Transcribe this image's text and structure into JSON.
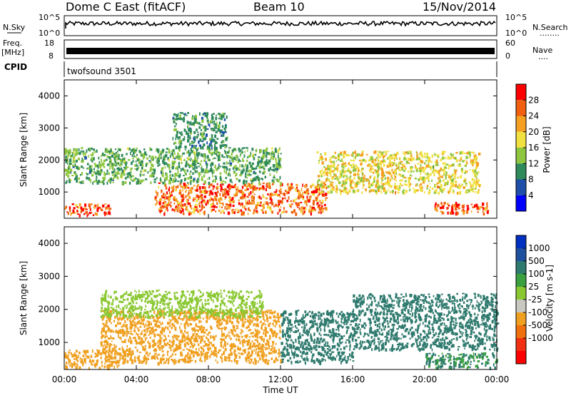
{
  "header": {
    "station": "Dome C East (fitACF)",
    "beam": "Beam 10",
    "date": "15/Nov/2014"
  },
  "noise_panel": {
    "left_label": "N.Sky",
    "left_ticks": [
      "10^5",
      "10^0"
    ],
    "right_ticks": [
      "10^5",
      "10^0"
    ],
    "right_label": "N.Search",
    "right_marker": "........"
  },
  "freq_panel": {
    "left_label_line1": "Freq.",
    "left_label_line2": "[MHz]",
    "left_ticks": [
      "18",
      "8"
    ],
    "right_ticks": [
      "60",
      "0"
    ],
    "right_label": "Nave",
    "right_marker": "...."
  },
  "cpid_panel": {
    "label": "CPID",
    "program": "twofsound 3501"
  },
  "colors": {
    "power_scale": [
      "#0000ff",
      "#1e4fa8",
      "#2e8a5a",
      "#8ec63f",
      "#f0e040",
      "#f5a020",
      "#f06010",
      "#ff0000"
    ],
    "velocity_scale": [
      "#ff0000",
      "#f03010",
      "#f07010",
      "#f0a020",
      "#c8c8c0",
      "#8ac832",
      "#3aa040",
      "#2e7a6e",
      "#1e50a0",
      "#0030c0"
    ]
  },
  "chart_data": [
    {
      "type": "heatmap",
      "quantity": "Power",
      "ylabel": "Slant Range [km]",
      "ylim": [
        180,
        4500
      ],
      "yticks": [
        "1000",
        "2000",
        "3000",
        "4000"
      ],
      "xlim": [
        0,
        24
      ],
      "colorbar": {
        "label": "Power [dB]",
        "ticks": [
          "4",
          "8",
          "12",
          "16",
          "20",
          "24",
          "28"
        ],
        "range": [
          0,
          32
        ]
      },
      "features": [
        {
          "t_start": 0.0,
          "t_end": 2.5,
          "range_low": 300,
          "range_high": 650,
          "value": 27
        },
        {
          "t_start": 5.0,
          "t_end": 14.5,
          "range_low": 350,
          "range_high": 1300,
          "value": 25
        },
        {
          "t_start": 0.0,
          "t_end": 12.0,
          "range_low": 1300,
          "range_high": 2400,
          "value": 12
        },
        {
          "t_start": 6.0,
          "t_end": 9.0,
          "range_low": 2400,
          "range_high": 3500,
          "value": 10
        },
        {
          "t_start": 14.0,
          "t_end": 23.0,
          "range_low": 1000,
          "range_high": 2300,
          "value": 18
        },
        {
          "t_start": 20.5,
          "t_end": 23.5,
          "range_low": 350,
          "range_high": 700,
          "value": 28
        }
      ]
    },
    {
      "type": "heatmap",
      "quantity": "Velocity",
      "ylabel": "Slant Range [km]",
      "xlabel": "Time UT",
      "ylim": [
        180,
        4500
      ],
      "yticks": [
        "1000",
        "2000",
        "3000",
        "4000"
      ],
      "xlim": [
        0,
        24
      ],
      "xticks": [
        "00:00",
        "04:00",
        "08:00",
        "12:00",
        "16:00",
        "20:00",
        "00:00"
      ],
      "colorbar": {
        "label": "Velocity [m s-1]",
        "ticks": [
          "1000",
          "500",
          "100",
          "25",
          "-25",
          "-100",
          "-500",
          "-1000"
        ]
      },
      "features": [
        {
          "t_start": 0.0,
          "t_end": 3.0,
          "range_low": 250,
          "range_high": 800,
          "value": -200
        },
        {
          "t_start": 2.0,
          "t_end": 12.0,
          "range_low": 400,
          "range_high": 2000,
          "value": -300
        },
        {
          "t_start": 2.0,
          "t_end": 11.0,
          "range_low": 1800,
          "range_high": 2600,
          "value": 0
        },
        {
          "t_start": 12.0,
          "t_end": 16.0,
          "range_low": 400,
          "range_high": 2000,
          "value": 300
        },
        {
          "t_start": 16.0,
          "t_end": 24.0,
          "range_low": 800,
          "range_high": 2500,
          "value": 200
        },
        {
          "t_start": 20.0,
          "t_end": 24.0,
          "range_low": 250,
          "range_high": 700,
          "value": 100
        }
      ]
    }
  ]
}
